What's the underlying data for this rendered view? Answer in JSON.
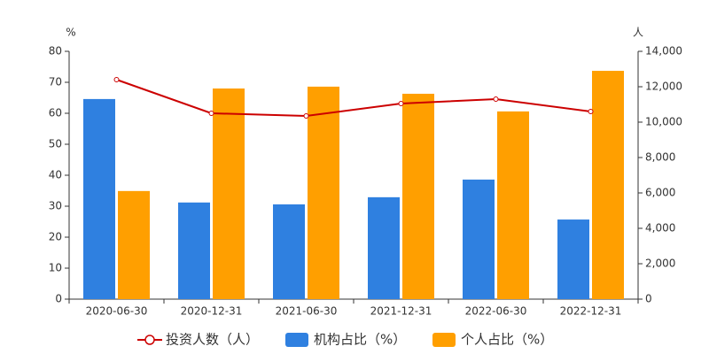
{
  "chart_data": {
    "type": "bar",
    "categories": [
      "2020-06-30",
      "2020-12-31",
      "2021-06-30",
      "2021-12-31",
      "2022-06-30",
      "2022-12-31"
    ],
    "y_label": "%",
    "y2_label": "人",
    "ylim": [
      0,
      80
    ],
    "yticks": [
      0,
      10,
      20,
      30,
      40,
      50,
      60,
      70,
      80
    ],
    "y2lim": [
      0,
      14000
    ],
    "y2ticks": [
      0,
      {
        "value": 2000,
        "label": "2,000"
      },
      {
        "value": 4000,
        "label": "4,000"
      },
      {
        "value": 6000,
        "label": "6,000"
      },
      {
        "value": 8000,
        "label": "8,000"
      },
      {
        "value": 10000,
        "label": "10,000"
      },
      {
        "value": 12000,
        "label": "12,000"
      },
      {
        "value": 14000,
        "label": "14,000"
      }
    ],
    "grid": false,
    "series": [
      {
        "name": "投资人数（人）",
        "type": "line",
        "axis": "y2",
        "color": "#cc0000",
        "values": [
          12400,
          10500,
          10350,
          11050,
          11300,
          10600
        ]
      },
      {
        "name": "机构占比（%）",
        "type": "bar",
        "color": "#2f80e0",
        "values": [
          64.6,
          31.2,
          30.6,
          32.9,
          38.6,
          25.7
        ]
      },
      {
        "name": "个人占比（%）",
        "type": "bar",
        "color": "#ff9f00",
        "values": [
          34.9,
          68.0,
          68.6,
          66.3,
          60.6,
          73.7
        ]
      }
    ]
  }
}
